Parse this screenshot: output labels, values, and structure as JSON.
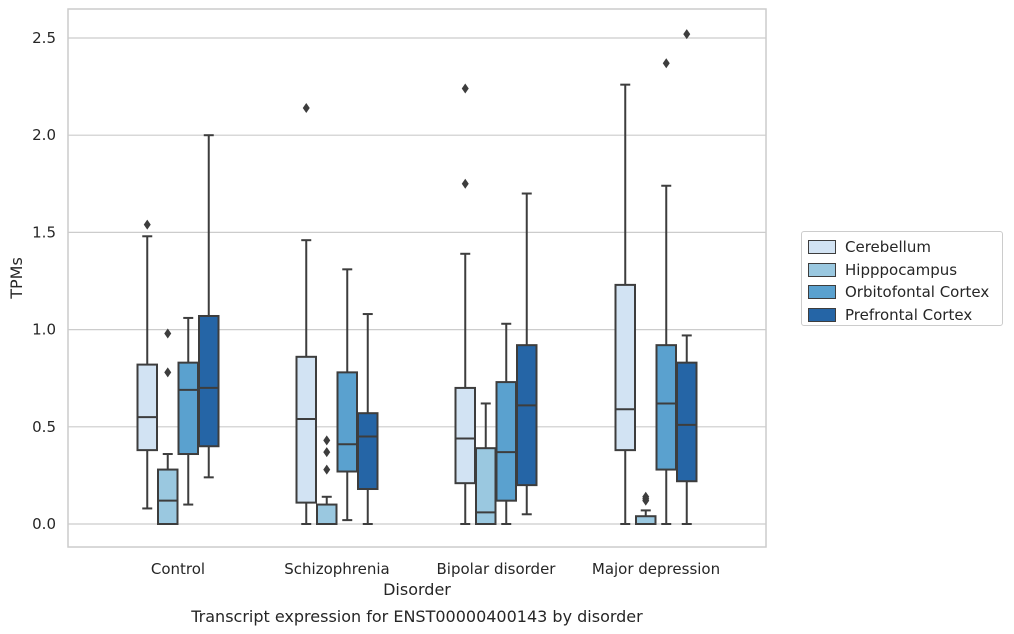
{
  "chart_data": {
    "type": "box",
    "title": "",
    "caption": "Transcript expression for ENST00000400143 by disorder",
    "xlabel": "Disorder",
    "ylabel": "TPMs",
    "ylim": [
      -0.12,
      2.65
    ],
    "yticks": [
      "0.0",
      "0.5",
      "1.0",
      "1.5",
      "2.0",
      "2.5"
    ],
    "ytick_values": [
      0,
      0.5,
      1.0,
      1.5,
      2.0,
      2.5
    ],
    "grid": "horizontal",
    "legend_position": "right",
    "categories": [
      "Control",
      "Schizophrenia",
      "Bipolar disorder",
      "Major depression"
    ],
    "series": [
      {
        "name": "Cerebellum",
        "color": "#d2e3f3",
        "boxes": [
          {
            "whisker_low": 0.08,
            "q1": 0.38,
            "median": 0.55,
            "q3": 0.82,
            "whisker_high": 1.48,
            "outliers": [
              1.54
            ]
          },
          {
            "whisker_low": 0.0,
            "q1": 0.11,
            "median": 0.54,
            "q3": 0.86,
            "whisker_high": 1.46,
            "outliers": [
              2.14
            ]
          },
          {
            "whisker_low": 0.0,
            "q1": 0.21,
            "median": 0.44,
            "q3": 0.7,
            "whisker_high": 1.39,
            "outliers": [
              1.75,
              2.24
            ]
          },
          {
            "whisker_low": 0.0,
            "q1": 0.38,
            "median": 0.59,
            "q3": 1.23,
            "whisker_high": 2.26,
            "outliers": []
          }
        ]
      },
      {
        "name": "Hipppocampus",
        "color": "#9ac8e0",
        "boxes": [
          {
            "whisker_low": 0.0,
            "q1": 0.0,
            "median": 0.12,
            "q3": 0.28,
            "whisker_high": 0.36,
            "outliers": [
              0.78,
              0.98
            ]
          },
          {
            "whisker_low": 0.0,
            "q1": 0.0,
            "median": 0.0,
            "q3": 0.1,
            "whisker_high": 0.14,
            "outliers": [
              0.28,
              0.37,
              0.43
            ]
          },
          {
            "whisker_low": 0.0,
            "q1": 0.0,
            "median": 0.06,
            "q3": 0.39,
            "whisker_high": 0.62,
            "outliers": []
          },
          {
            "whisker_low": 0.0,
            "q1": 0.0,
            "median": 0.0,
            "q3": 0.04,
            "whisker_high": 0.07,
            "outliers": [
              0.12,
              0.13,
              0.14
            ]
          }
        ]
      },
      {
        "name": "Orbitofontal Cortex",
        "color": "#5aa1cf",
        "boxes": [
          {
            "whisker_low": 0.1,
            "q1": 0.36,
            "median": 0.69,
            "q3": 0.83,
            "whisker_high": 1.06,
            "outliers": []
          },
          {
            "whisker_low": 0.02,
            "q1": 0.27,
            "median": 0.41,
            "q3": 0.78,
            "whisker_high": 1.31,
            "outliers": []
          },
          {
            "whisker_low": 0.0,
            "q1": 0.12,
            "median": 0.37,
            "q3": 0.73,
            "whisker_high": 1.03,
            "outliers": []
          },
          {
            "whisker_low": 0.0,
            "q1": 0.28,
            "median": 0.62,
            "q3": 0.92,
            "whisker_high": 1.74,
            "outliers": [
              2.37
            ]
          }
        ]
      },
      {
        "name": "Prefrontal Cortex",
        "color": "#2565a6",
        "boxes": [
          {
            "whisker_low": 0.24,
            "q1": 0.4,
            "median": 0.7,
            "q3": 1.07,
            "whisker_high": 2.0,
            "outliers": []
          },
          {
            "whisker_low": 0.0,
            "q1": 0.18,
            "median": 0.45,
            "q3": 0.57,
            "whisker_high": 1.08,
            "outliers": []
          },
          {
            "whisker_low": 0.05,
            "q1": 0.2,
            "median": 0.61,
            "q3": 0.92,
            "whisker_high": 1.7,
            "outliers": []
          },
          {
            "whisker_low": 0.0,
            "q1": 0.22,
            "median": 0.51,
            "q3": 0.83,
            "whisker_high": 0.97,
            "outliers": [
              2.52
            ]
          }
        ]
      }
    ]
  }
}
